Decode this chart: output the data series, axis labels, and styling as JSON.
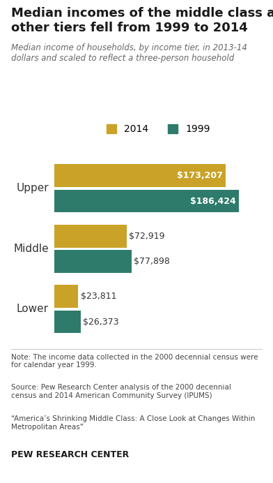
{
  "title_line1": "Median incomes of the middle class and",
  "title_line2": "other tiers fell from 1999 to 2014",
  "subtitle": "Median income of households, by income tier, in 2013-14\ndollars and scaled to reflect a three-person household",
  "categories": [
    "Upper",
    "Middle",
    "Lower"
  ],
  "values_2014": [
    173207,
    72919,
    23811
  ],
  "values_1999": [
    186424,
    77898,
    26373
  ],
  "color_2014": "#C9A227",
  "color_1999": "#2E7B6B",
  "max_value": 210000,
  "labels_2014": [
    "$173,207",
    "$72,919",
    "$23,811"
  ],
  "labels_1999": [
    "$186,424",
    "$77,898",
    "$26,373"
  ],
  "note_text": "Note: The income data collected in the 2000 decennial census were\nfor calendar year 1999.",
  "source_text": "Source: Pew Research Center analysis of the 2000 decennial\ncensus and 2014 American Community Survey (IPUMS)",
  "quote_text": "“America’s Shrinking Middle Class: A Close Look at Changes Within\nMetropolitan Areas”",
  "footer_text": "PEW RESEARCH CENTER",
  "background_color": "#ffffff",
  "title_color": "#1a1a1a",
  "subtitle_color": "#666666",
  "label_color_outside": "#333333",
  "bar_height": 0.38,
  "bar_gap": 0.04
}
